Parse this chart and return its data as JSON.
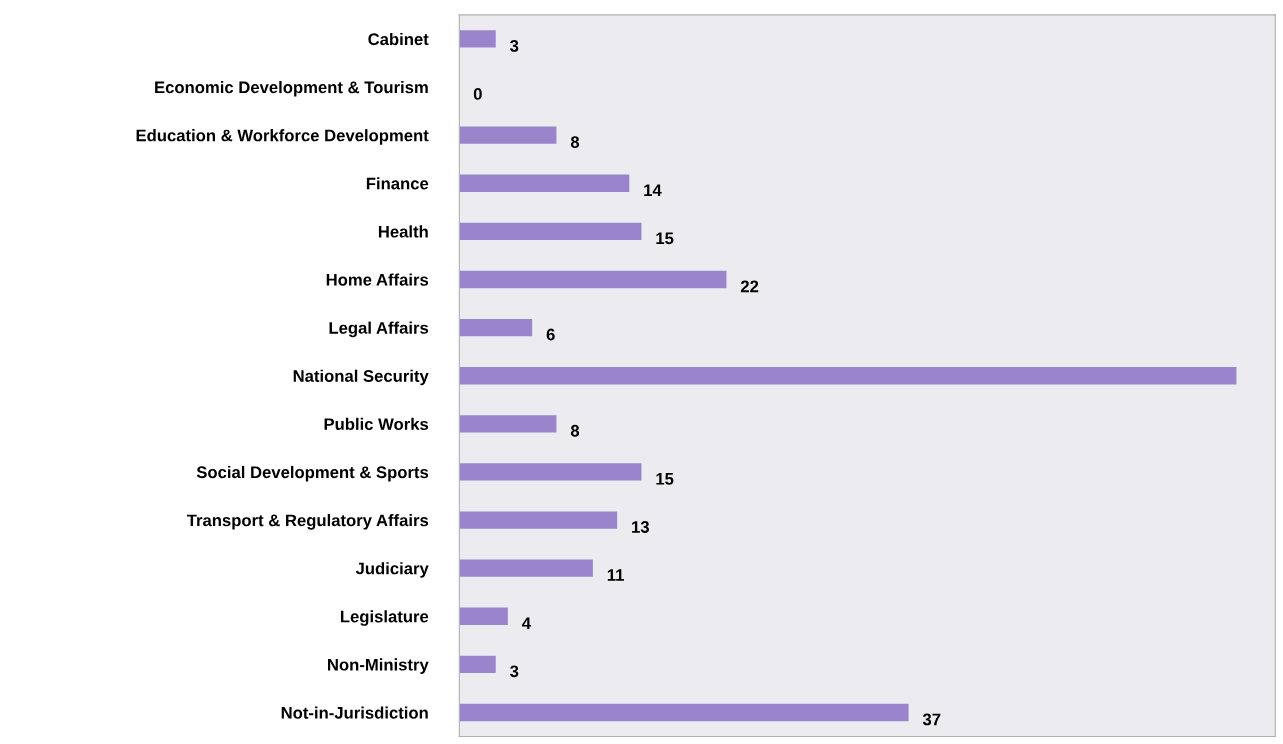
{
  "chart_data": {
    "type": "bar",
    "orientation": "horizontal",
    "categories": [
      "Cabinet",
      "Economic Development & Tourism",
      "Education & Workforce Development",
      "Finance",
      "Health",
      "Home Affairs",
      "Legal Affairs",
      "National Security",
      "Public Works",
      "Social Development & Sports",
      "Transport & Regulatory Affairs",
      "Judiciary",
      "Legislature",
      "Non-Ministry",
      "Not-in-Jurisdiction"
    ],
    "values": [
      3,
      0,
      8,
      14,
      15,
      22,
      6,
      64,
      8,
      15,
      13,
      11,
      4,
      3,
      37
    ],
    "value_labels": [
      "3",
      "0",
      "8",
      "14",
      "15",
      "22",
      "6",
      null,
      "8",
      "15",
      "13",
      "11",
      "4",
      "3",
      "37"
    ],
    "color": "#9a85cc",
    "tick_labels": "y",
    "grid": false
  }
}
